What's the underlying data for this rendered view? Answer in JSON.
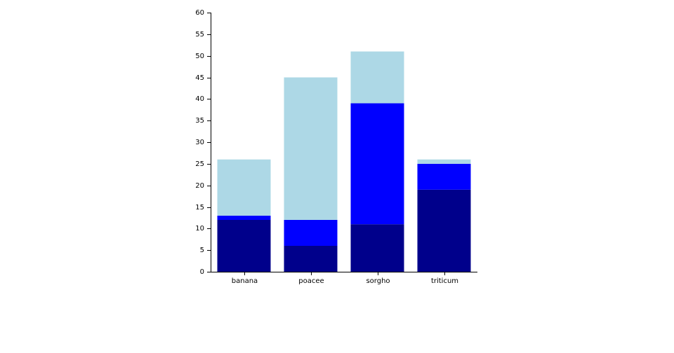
{
  "chart_data": {
    "type": "bar",
    "stacked": true,
    "categories": [
      "banana",
      "poacee",
      "sorgho",
      "triticum"
    ],
    "series": [
      {
        "color": "#00008b",
        "values": [
          12,
          6,
          11,
          19
        ]
      },
      {
        "color": "#0000ff",
        "values": [
          1,
          6,
          28,
          6
        ]
      },
      {
        "color": "#add8e6",
        "values": [
          13,
          33,
          12,
          1
        ]
      }
    ],
    "ylim": [
      0,
      60
    ],
    "yticks": [
      0,
      5,
      10,
      15,
      20,
      25,
      30,
      35,
      40,
      45,
      50,
      55,
      60
    ],
    "grid": false,
    "legend": "none"
  }
}
